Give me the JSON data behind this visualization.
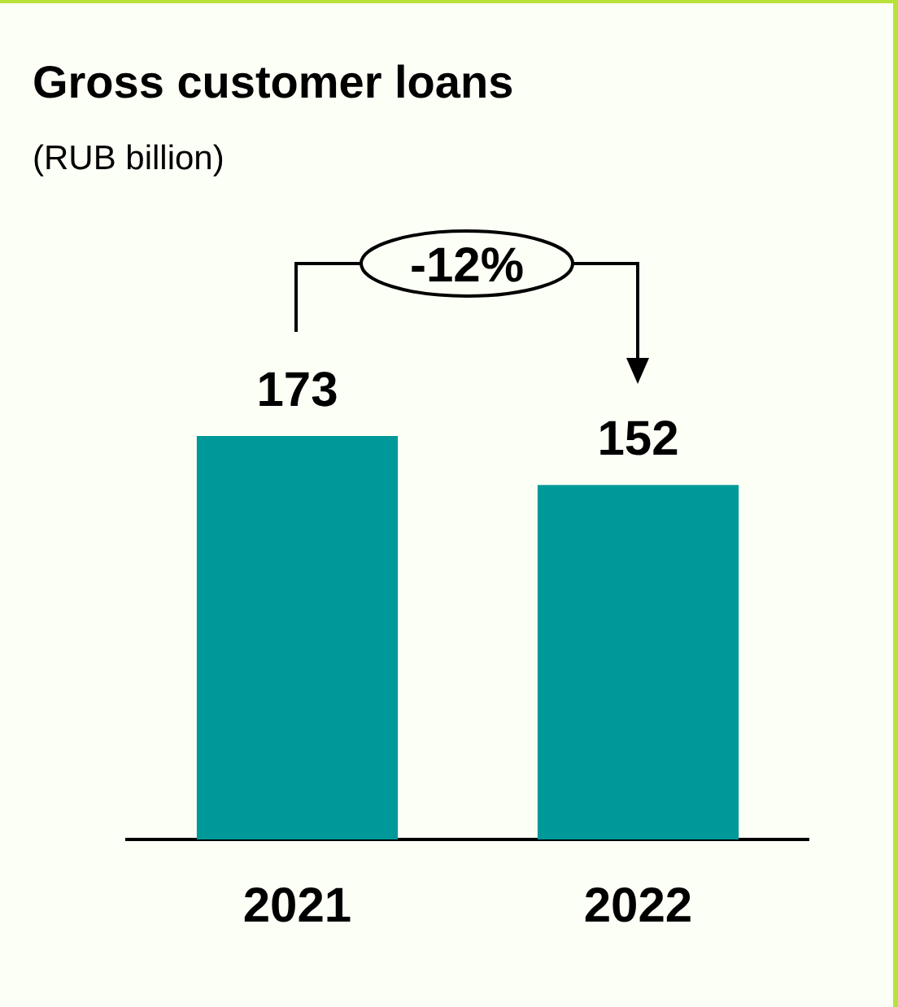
{
  "chart_data": {
    "type": "bar",
    "title": "Gross customer loans",
    "subtitle": "(RUB billion)",
    "categories": [
      "2021",
      "2022"
    ],
    "values": [
      173,
      152
    ],
    "color": "#009999",
    "data_labels": true,
    "grid": false,
    "legend": false,
    "tick_labels": "x",
    "annotations": [
      "-12%"
    ]
  }
}
